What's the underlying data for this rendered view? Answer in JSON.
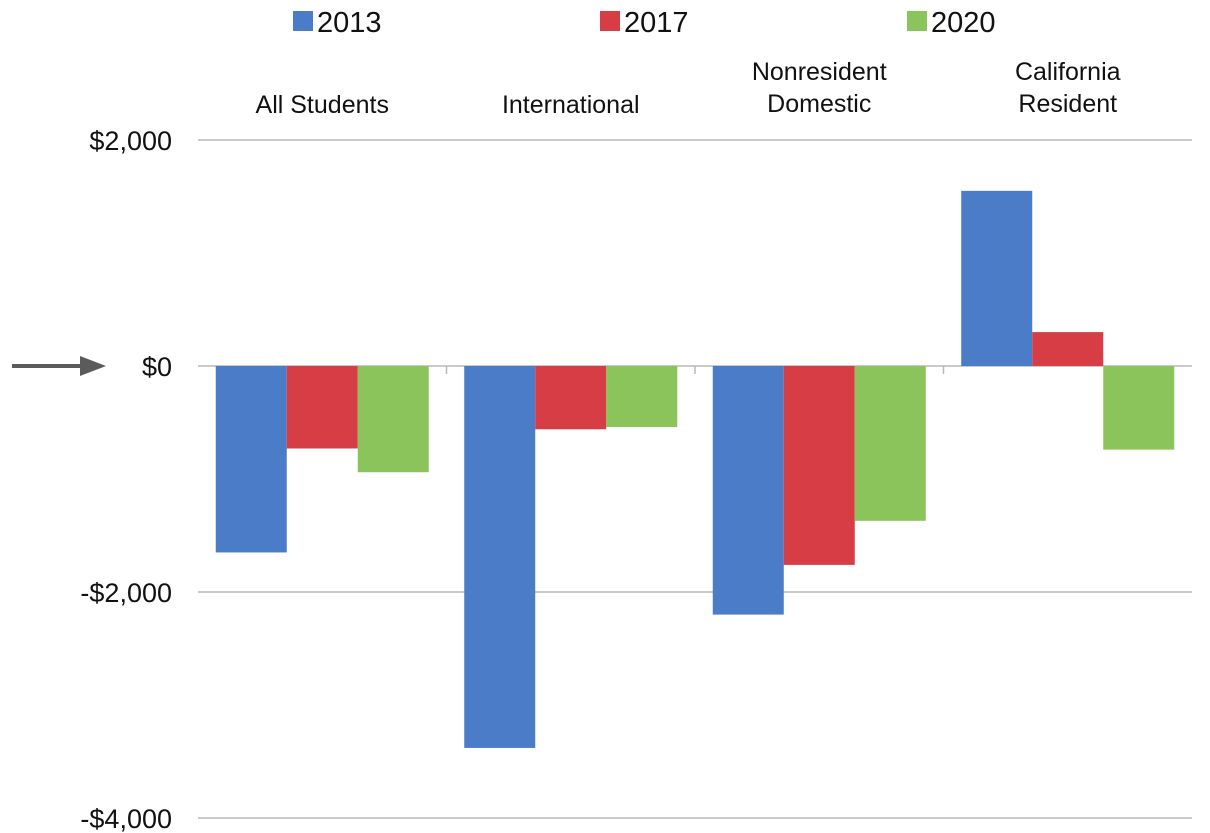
{
  "chart_data": {
    "type": "bar",
    "categories": [
      "All Students",
      "International",
      "Nonresident Domestic",
      "California Resident"
    ],
    "category_label_lines": [
      [
        "All Students"
      ],
      [
        "International"
      ],
      [
        "Nonresident",
        "Domestic"
      ],
      [
        "California",
        "Resident"
      ]
    ],
    "series": [
      {
        "name": "2013",
        "color": "#4a7cc7",
        "values": [
          -1650,
          -3380,
          -2200,
          1550
        ]
      },
      {
        "name": "2017",
        "color": "#d63d44",
        "values": [
          -730,
          -560,
          -1760,
          300
        ]
      },
      {
        "name": "2020",
        "color": "#8bc45a",
        "values": [
          -940,
          -540,
          -1370,
          -740
        ]
      }
    ],
    "ylim": [
      -4000,
      2000
    ],
    "yticks": [
      2000,
      0,
      -2000,
      -4000
    ],
    "ytick_labels": [
      "$2,000",
      "$0",
      "-$2,000",
      "-$4,000"
    ],
    "grid": true,
    "legend_position": "top",
    "category_label_position": "top",
    "annotation_arrow": "points to $0",
    "gridline_color": "#b9b9b9",
    "arrow_color": "#5b5b5b"
  }
}
